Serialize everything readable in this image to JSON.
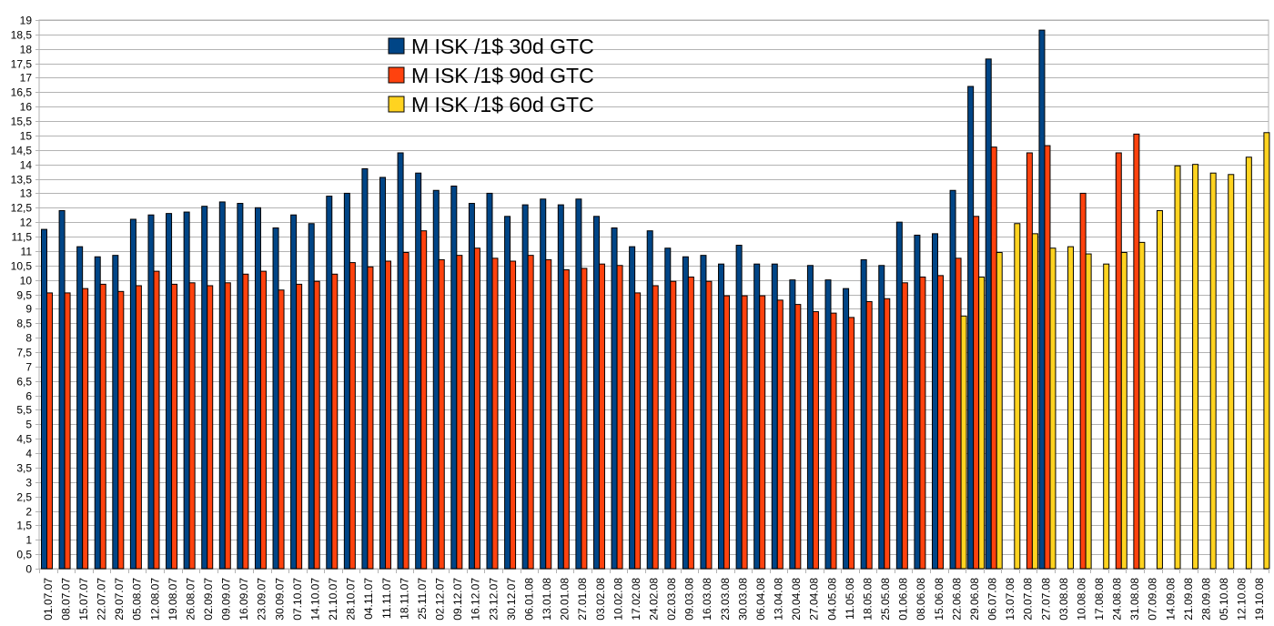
{
  "chart_data": {
    "type": "bar",
    "title": "",
    "xlabel": "",
    "ylabel": "",
    "ylim": [
      0,
      19
    ],
    "ytick_step": 0.5,
    "grid": true,
    "legend_position": "top-left-center",
    "categories": [
      "01.07.07",
      "08.07.07",
      "15.07.07",
      "22.07.07",
      "29.07.07",
      "05.08.07",
      "12.08.07",
      "19.08.07",
      "26.08.07",
      "02.09.07",
      "09.09.07",
      "16.09.07",
      "23.09.07",
      "30.09.07",
      "07.10.07",
      "14.10.07",
      "21.10.07",
      "28.10.07",
      "04.11.07",
      "11.11.07",
      "18.11.07",
      "25.11.07",
      "02.12.07",
      "09.12.07",
      "16.12.07",
      "23.12.07",
      "30.12.07",
      "06.01.08",
      "13.01.08",
      "20.01.08",
      "27.01.08",
      "03.02.08",
      "10.02.08",
      "17.02.08",
      "24.02.08",
      "02.03.08",
      "09.03.08",
      "16.03.08",
      "23.03.08",
      "30.03.08",
      "06.04.08",
      "13.04.08",
      "20.04.08",
      "27.04.08",
      "04.05.08",
      "11.05.08",
      "18.05.08",
      "25.05.08",
      "01.06.08",
      "08.06.08",
      "15.06.08",
      "22.06.08",
      "29.06.08",
      "06.07.08",
      "13.07.08",
      "20.07.08",
      "27.07.08",
      "03.08.08",
      "10.08.08",
      "17.08.08",
      "24.08.08",
      "31.08.08",
      "07.09.08",
      "14.09.08",
      "21.09.08",
      "28.09.08",
      "05.10.08",
      "12.10.08",
      "19.10.08"
    ],
    "series": [
      {
        "name": "M ISK /1$  30d GTC",
        "color": "#004586",
        "values": [
          11.75,
          12.4,
          11.15,
          10.8,
          10.85,
          12.1,
          12.25,
          12.3,
          12.35,
          12.55,
          12.7,
          12.65,
          12.5,
          11.8,
          12.25,
          11.95,
          12.9,
          13.0,
          13.85,
          13.55,
          14.4,
          13.7,
          13.1,
          13.25,
          12.65,
          13.0,
          12.2,
          12.6,
          12.8,
          12.6,
          12.8,
          12.2,
          11.8,
          11.15,
          11.7,
          11.1,
          10.8,
          10.85,
          10.55,
          11.2,
          10.55,
          10.55,
          10.0,
          10.5,
          10.0,
          9.7,
          10.7,
          10.5,
          12.0,
          11.55,
          11.6,
          13.1,
          16.7,
          17.65,
          null,
          null,
          18.65,
          null,
          null,
          null,
          null,
          null,
          null,
          null,
          null,
          null,
          null,
          null,
          null
        ]
      },
      {
        "name": "M ISK /1$ 90d GTC",
        "color": "#ff420e",
        "values": [
          9.55,
          9.55,
          9.7,
          9.85,
          9.6,
          9.8,
          10.3,
          9.85,
          9.9,
          9.8,
          9.9,
          10.2,
          10.3,
          9.65,
          9.85,
          9.95,
          10.2,
          10.6,
          10.45,
          10.65,
          10.95,
          11.7,
          10.7,
          10.85,
          11.1,
          10.75,
          10.65,
          10.85,
          10.7,
          10.35,
          10.4,
          10.55,
          10.5,
          9.55,
          9.8,
          9.95,
          10.1,
          9.95,
          9.45,
          9.45,
          9.45,
          9.3,
          9.15,
          8.9,
          8.85,
          8.7,
          9.25,
          9.35,
          9.9,
          10.1,
          10.15,
          10.75,
          12.2,
          14.6,
          null,
          14.4,
          14.65,
          null,
          13.0,
          null,
          14.4,
          15.05,
          null,
          null,
          null,
          null,
          null,
          null,
          null
        ]
      },
      {
        "name": "M ISK /1$ 60d GTC",
        "color": "#ffd320",
        "values": [
          null,
          null,
          null,
          null,
          null,
          null,
          null,
          null,
          null,
          null,
          null,
          null,
          null,
          null,
          null,
          null,
          null,
          null,
          null,
          null,
          null,
          null,
          null,
          null,
          null,
          null,
          null,
          null,
          null,
          null,
          null,
          null,
          null,
          null,
          null,
          null,
          null,
          null,
          null,
          null,
          null,
          null,
          null,
          null,
          null,
          null,
          null,
          null,
          null,
          null,
          null,
          8.75,
          10.1,
          10.95,
          11.95,
          11.6,
          11.1,
          11.15,
          10.9,
          10.55,
          10.95,
          11.3,
          12.4,
          13.95,
          14.0,
          13.7,
          13.65,
          14.25,
          15.1
        ]
      }
    ]
  }
}
